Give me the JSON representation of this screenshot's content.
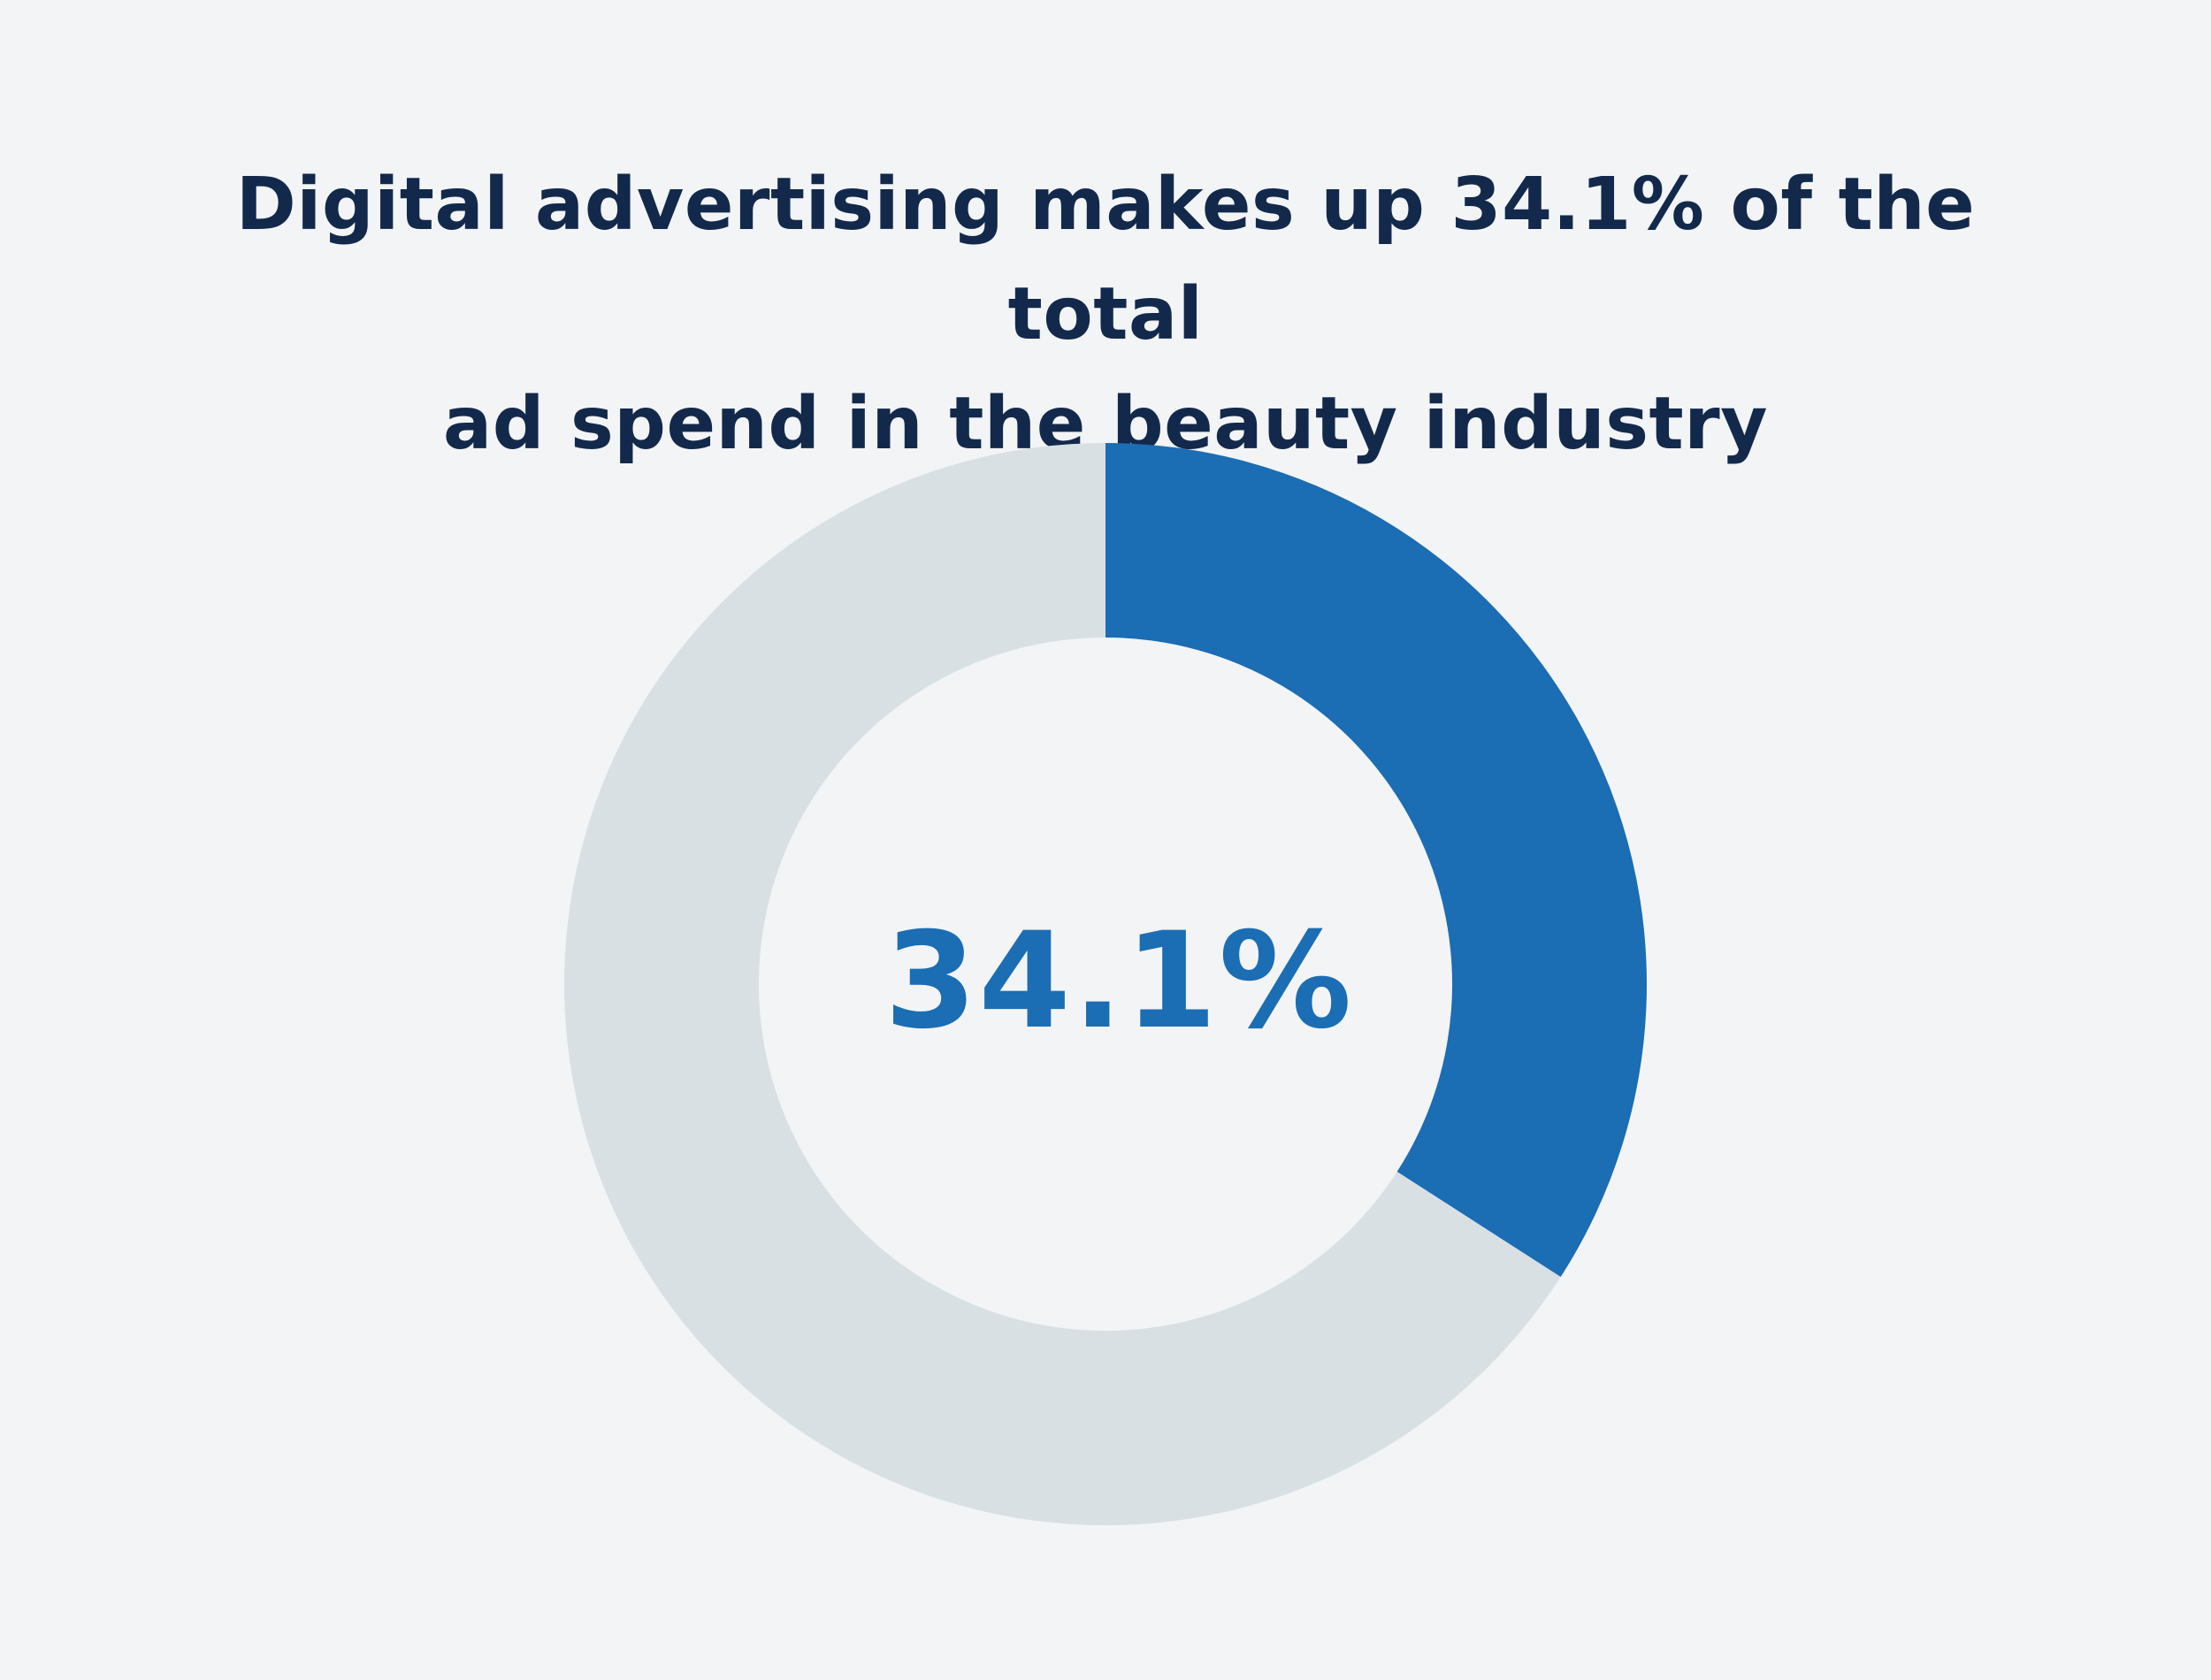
{
  "colors": {
    "background": "#f2f4f6",
    "title": "#13294b",
    "accent": "#1b6db4",
    "remainder": "#d8e0e4",
    "inner": "#f2f4f6"
  },
  "chart_data": {
    "type": "pie",
    "title_lines": [
      "Digital advertising makes up 34.1% of the total",
      "ad spend in the beauty industry"
    ],
    "center_label": "34.1%",
    "slices": [
      {
        "value": 34.1,
        "color": "#1b6db4"
      },
      {
        "value": 65.9,
        "color": "#d8e0e4"
      }
    ]
  }
}
